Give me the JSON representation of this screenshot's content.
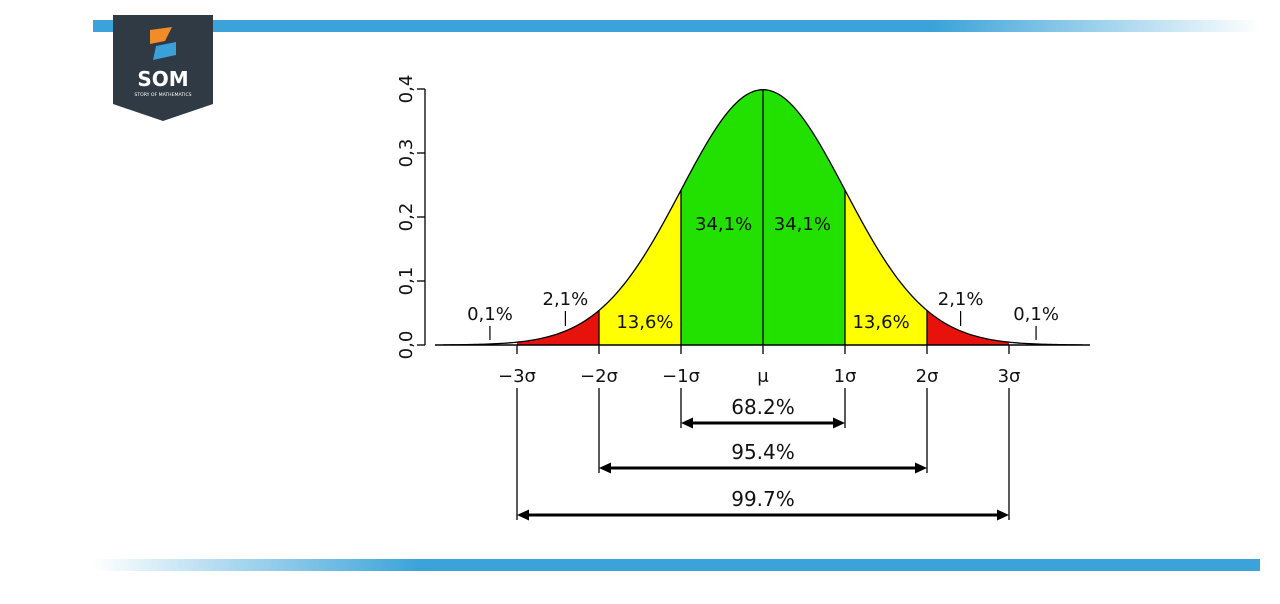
{
  "brand": {
    "logo_text": "SOM",
    "logo_subtext": "STORY OF MATHEMATICS",
    "colors": {
      "badge": "#2f3a44",
      "orange": "#f28c28",
      "blue": "#3aa0d8",
      "stripe": "#3ba3d9"
    }
  },
  "chart_data": {
    "type": "area",
    "title": "",
    "xlabel": "",
    "ylabel": "",
    "xlim": [
      -3.9,
      3.9
    ],
    "ylim": [
      0,
      0.4
    ],
    "y_ticks": [
      {
        "value": 0.0,
        "label": "0,0"
      },
      {
        "value": 0.1,
        "label": "0,1"
      },
      {
        "value": 0.2,
        "label": "0,2"
      },
      {
        "value": 0.3,
        "label": "0,3"
      },
      {
        "value": 0.4,
        "label": "0,4"
      }
    ],
    "x_ticks": [
      {
        "value": -3,
        "label": "−3σ"
      },
      {
        "value": -2,
        "label": "−2σ"
      },
      {
        "value": -1,
        "label": "−1σ"
      },
      {
        "value": 0,
        "label": "μ"
      },
      {
        "value": 1,
        "label": "1σ"
      },
      {
        "value": 2,
        "label": "2σ"
      },
      {
        "value": 3,
        "label": "3σ"
      }
    ],
    "curve": {
      "function": "normal_pdf",
      "mean": 0,
      "sd": 1
    },
    "regions": [
      {
        "from": -3.9,
        "to": -3,
        "label": "0,1%",
        "color": "#ffffff"
      },
      {
        "from": -3,
        "to": -2,
        "label": "2,1%",
        "color": "#e8120c"
      },
      {
        "from": -2,
        "to": -1,
        "label": "13,6%",
        "color": "#ffff00"
      },
      {
        "from": -1,
        "to": 0,
        "label": "34,1%",
        "color": "#22e000"
      },
      {
        "from": 0,
        "to": 1,
        "label": "34,1%",
        "color": "#22e000"
      },
      {
        "from": 1,
        "to": 2,
        "label": "13,6%",
        "color": "#ffff00"
      },
      {
        "from": 2,
        "to": 3,
        "label": "2,1%",
        "color": "#e8120c"
      },
      {
        "from": 3,
        "to": 3.9,
        "label": "0,1%",
        "color": "#ffffff"
      }
    ],
    "ranges": [
      {
        "from": -1,
        "to": 1,
        "label": "68.2%"
      },
      {
        "from": -2,
        "to": 2,
        "label": "95.4%"
      },
      {
        "from": -3,
        "to": 3,
        "label": "99.7%"
      }
    ]
  }
}
